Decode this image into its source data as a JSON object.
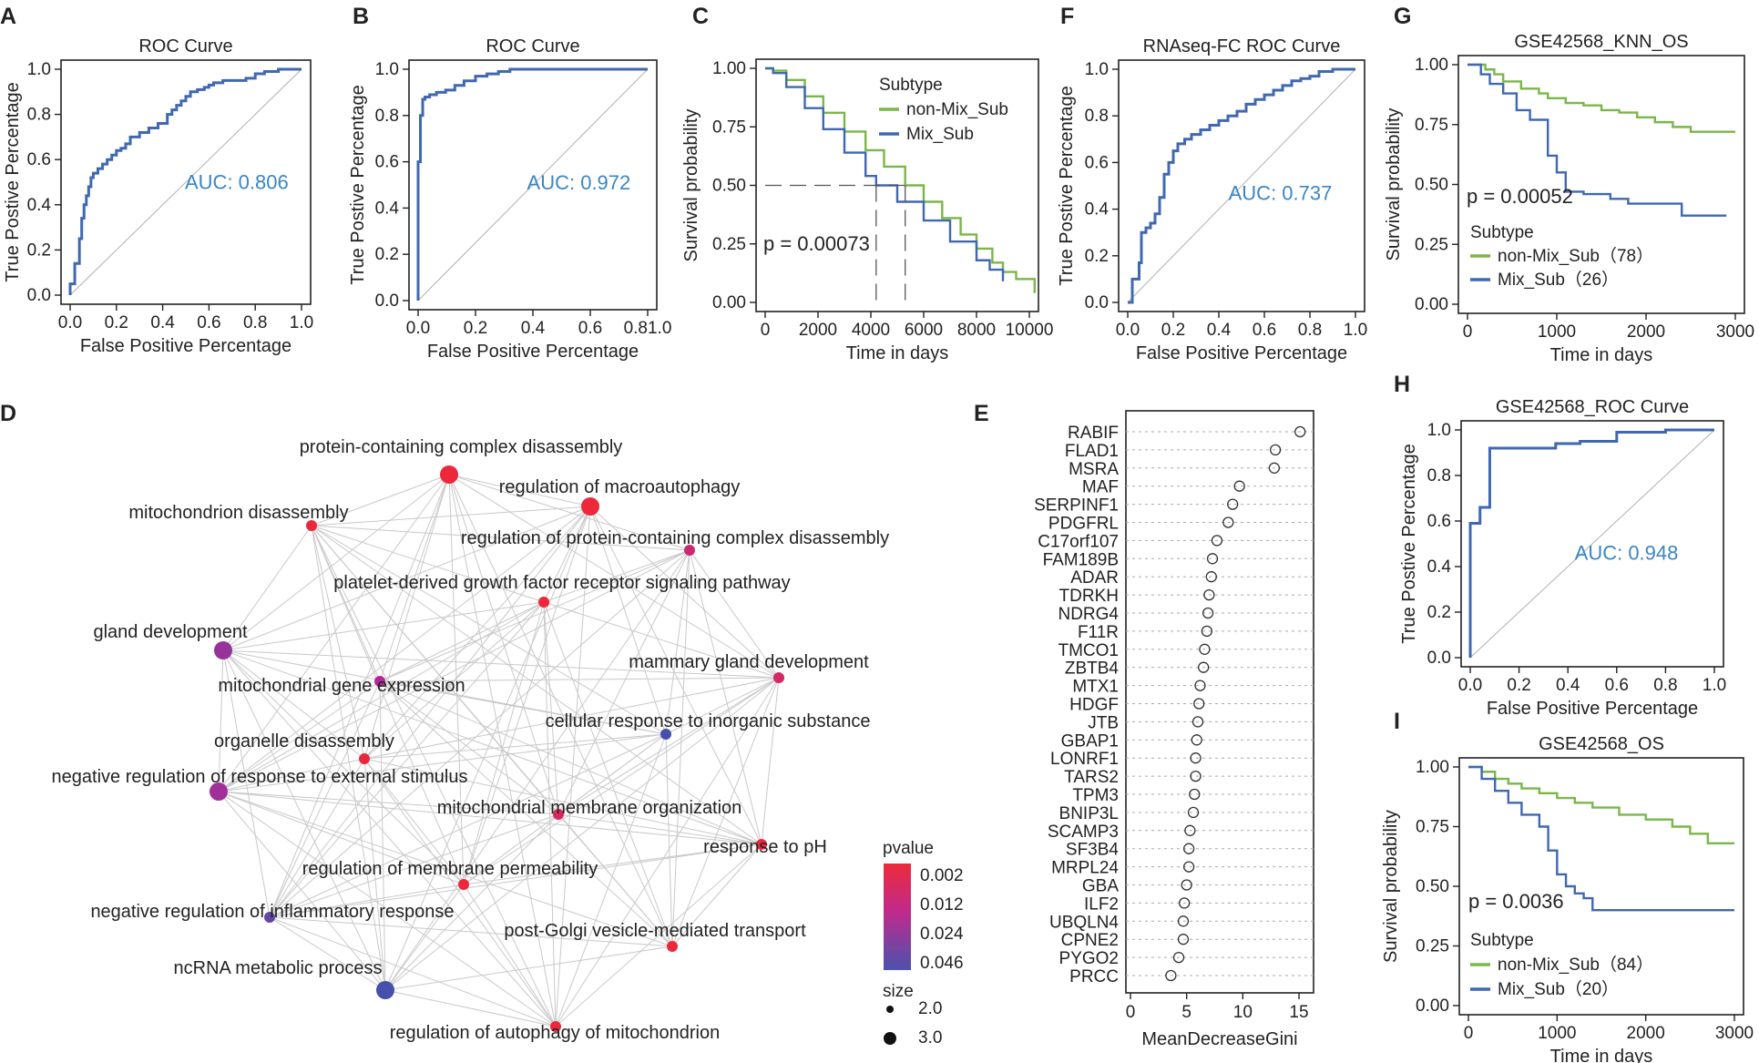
{
  "colors": {
    "green": "#7ab648",
    "blue": "#3f68b1",
    "auc": "#3a86c6",
    "axis": "#222222",
    "diag": "#b0b0b0",
    "edge": "#c9c9c9"
  },
  "chart_data": [
    {
      "panel": "A",
      "type": "line",
      "title": "ROC Curve",
      "xlabel": "False Positive Percentage",
      "ylabel": "True Postive Percentage",
      "xlim": [
        0,
        1
      ],
      "ylim": [
        0,
        1
      ],
      "xticks": [
        "0.0",
        "0.2",
        "0.4",
        "0.6",
        "0.8",
        "1.0"
      ],
      "yticks": [
        "0.0",
        "0.2",
        "0.4",
        "0.6",
        "0.8",
        "1.0"
      ],
      "annotation": "AUC: 0.806",
      "series": [
        {
          "name": "ROC",
          "x": [
            0,
            0,
            0.02,
            0.02,
            0.04,
            0.05,
            0.06,
            0.07,
            0.08,
            0.09,
            0.1,
            0.12,
            0.14,
            0.16,
            0.18,
            0.2,
            0.22,
            0.24,
            0.26,
            0.3,
            0.34,
            0.38,
            0.42,
            0.44,
            0.46,
            0.48,
            0.5,
            0.52,
            0.55,
            0.58,
            0.6,
            0.62,
            0.66,
            0.7,
            0.76,
            0.8,
            0.84,
            0.9,
            1.0
          ],
          "y": [
            0,
            0.05,
            0.08,
            0.14,
            0.25,
            0.34,
            0.4,
            0.44,
            0.48,
            0.52,
            0.54,
            0.56,
            0.58,
            0.6,
            0.62,
            0.64,
            0.65,
            0.67,
            0.7,
            0.72,
            0.74,
            0.76,
            0.8,
            0.82,
            0.84,
            0.86,
            0.88,
            0.9,
            0.91,
            0.92,
            0.93,
            0.94,
            0.95,
            0.95,
            0.96,
            0.98,
            0.99,
            1.0,
            1.0
          ]
        }
      ]
    },
    {
      "panel": "B",
      "type": "line",
      "title": "ROC Curve",
      "xlabel": "False Positive Percentage",
      "ylabel": "True Postive Percentage",
      "xlim": [
        0,
        1
      ],
      "ylim": [
        0,
        1
      ],
      "xticks": [
        "0.0",
        "0.2",
        "0.4",
        "0.6",
        "0.81.0"
      ],
      "yticks": [
        "0.0",
        "0.2",
        "0.4",
        "0.6",
        "0.8",
        "1.0"
      ],
      "annotation": "AUC: 0.972",
      "series": [
        {
          "name": "ROC",
          "x": [
            0,
            0,
            0.01,
            0.01,
            0.02,
            0.02,
            0.03,
            0.05,
            0.08,
            0.12,
            0.16,
            0.2,
            0.25,
            0.3,
            0.35,
            0.4,
            0.5,
            0.7,
            1.0
          ],
          "y": [
            0,
            0.6,
            0.72,
            0.8,
            0.85,
            0.87,
            0.88,
            0.89,
            0.9,
            0.91,
            0.93,
            0.95,
            0.97,
            0.98,
            0.99,
            1.0,
            1.0,
            1.0,
            1.0
          ]
        }
      ]
    },
    {
      "panel": "C",
      "type": "line",
      "title": "",
      "xlabel": "Time in days",
      "ylabel": "Survival probability",
      "xlim": [
        0,
        10000
      ],
      "ylim": [
        0,
        1
      ],
      "xticks": [
        "0",
        "2000",
        "4000",
        "6000",
        "8000",
        "10000"
      ],
      "yticks": [
        "0.00",
        "0.25",
        "0.50",
        "0.75",
        "1.00"
      ],
      "legend_title": "Subtype",
      "annotation": "p = 0.00073",
      "median_survival": [
        4200,
        5300
      ],
      "series": [
        {
          "name": "non-Mix_Sub",
          "x": [
            0,
            300,
            800,
            1500,
            2200,
            3000,
            3800,
            4500,
            5300,
            6000,
            6700,
            7400,
            8000,
            8600,
            9000,
            9500,
            9800,
            10000,
            10200
          ],
          "y": [
            1,
            0.99,
            0.95,
            0.88,
            0.81,
            0.73,
            0.65,
            0.58,
            0.5,
            0.43,
            0.36,
            0.29,
            0.23,
            0.17,
            0.13,
            0.1,
            0.1,
            0.1,
            0.04
          ]
        },
        {
          "name": "Mix_Sub",
          "x": [
            0,
            300,
            800,
            1500,
            2200,
            3000,
            3800,
            4200,
            5000,
            6000,
            7000,
            8000,
            8500,
            9000
          ],
          "y": [
            1,
            0.98,
            0.92,
            0.83,
            0.74,
            0.64,
            0.54,
            0.5,
            0.43,
            0.35,
            0.26,
            0.18,
            0.14,
            0.09
          ]
        }
      ]
    },
    {
      "panel": "F",
      "type": "line",
      "title": "RNAseq-FC ROC Curve",
      "xlabel": "False Positive Percentage",
      "ylabel": "True Postive Percentage",
      "xlim": [
        0,
        1
      ],
      "ylim": [
        0,
        1
      ],
      "xticks": [
        "0.0",
        "0.2",
        "0.4",
        "0.6",
        "0.8",
        "1.0"
      ],
      "yticks": [
        "0.0",
        "0.2",
        "0.4",
        "0.6",
        "0.8",
        "1.0"
      ],
      "annotation": "AUC: 0.737",
      "series": [
        {
          "name": "ROC",
          "x": [
            0,
            0.02,
            0.02,
            0.05,
            0.06,
            0.08,
            0.1,
            0.12,
            0.14,
            0.16,
            0.18,
            0.2,
            0.22,
            0.25,
            0.28,
            0.32,
            0.36,
            0.4,
            0.44,
            0.48,
            0.52,
            0.56,
            0.6,
            0.64,
            0.68,
            0.72,
            0.76,
            0.8,
            0.84,
            0.9,
            1.0
          ],
          "y": [
            0,
            0.05,
            0.1,
            0.17,
            0.3,
            0.32,
            0.34,
            0.38,
            0.45,
            0.55,
            0.6,
            0.65,
            0.68,
            0.7,
            0.72,
            0.74,
            0.76,
            0.78,
            0.8,
            0.82,
            0.85,
            0.87,
            0.89,
            0.91,
            0.93,
            0.95,
            0.96,
            0.97,
            0.99,
            1.0,
            1.0
          ]
        }
      ]
    },
    {
      "panel": "G",
      "type": "line",
      "title": "GSE42568_KNN_OS",
      "xlabel": "Time in days",
      "ylabel": "Survival probability",
      "xlim": [
        0,
        3000
      ],
      "ylim": [
        0,
        1
      ],
      "xticks": [
        "0",
        "1000",
        "2000",
        "3000"
      ],
      "yticks": [
        "0.00",
        "0.25",
        "0.50",
        "0.75",
        "1.00"
      ],
      "legend_title": "Subtype",
      "annotation": "p = 0.00052",
      "series": [
        {
          "name": "non-Mix_Sub",
          "count": "78",
          "x": [
            0,
            200,
            300,
            400,
            600,
            800,
            900,
            1100,
            1300,
            1500,
            1700,
            1900,
            2100,
            2300,
            2500,
            3000
          ],
          "y": [
            1,
            0.98,
            0.96,
            0.93,
            0.9,
            0.88,
            0.86,
            0.84,
            0.83,
            0.81,
            0.8,
            0.78,
            0.76,
            0.74,
            0.72,
            0.72
          ]
        },
        {
          "name": "Mix_Sub",
          "count": "26",
          "x": [
            0,
            150,
            250,
            400,
            550,
            700,
            900,
            1000,
            1100,
            1300,
            1600,
            1800,
            2400,
            2900
          ],
          "y": [
            1,
            0.96,
            0.92,
            0.88,
            0.81,
            0.77,
            0.62,
            0.55,
            0.47,
            0.46,
            0.44,
            0.42,
            0.37,
            0.37
          ]
        }
      ]
    },
    {
      "panel": "H",
      "type": "line",
      "title": "GSE42568_ROC Curve",
      "xlabel": "False Positive Percentage",
      "ylabel": "True Postive Percentage",
      "xlim": [
        0,
        1
      ],
      "ylim": [
        0,
        1
      ],
      "xticks": [
        "0.0",
        "0.2",
        "0.4",
        "0.6",
        "0.8",
        "1.0"
      ],
      "yticks": [
        "0.0",
        "0.2",
        "0.4",
        "0.6",
        "0.8",
        "1.0"
      ],
      "annotation": "AUC: 0.948",
      "series": [
        {
          "name": "ROC",
          "x": [
            0,
            0,
            0.04,
            0.04,
            0.08,
            0.08,
            0.3,
            0.35,
            0.45,
            0.6,
            0.6,
            0.8,
            1.0
          ],
          "y": [
            0,
            0.59,
            0.59,
            0.66,
            0.66,
            0.92,
            0.92,
            0.94,
            0.95,
            0.96,
            0.99,
            1.0,
            1.0
          ]
        }
      ]
    },
    {
      "panel": "I",
      "type": "line",
      "title": "GSE42568_OS",
      "xlabel": "Time in days",
      "ylabel": "Survival probability",
      "xlim": [
        0,
        3000
      ],
      "ylim": [
        0,
        1
      ],
      "xticks": [
        "0",
        "1000",
        "2000",
        "3000"
      ],
      "yticks": [
        "0.00",
        "0.25",
        "0.50",
        "0.75",
        "1.00"
      ],
      "legend_title": "Subtype",
      "annotation": "p = 0.0036",
      "series": [
        {
          "name": "non-Mix_Sub",
          "count": "84",
          "x": [
            0,
            150,
            300,
            450,
            600,
            800,
            1000,
            1200,
            1400,
            1700,
            2000,
            2300,
            2500,
            2700,
            3000
          ],
          "y": [
            1,
            0.98,
            0.95,
            0.93,
            0.91,
            0.89,
            0.87,
            0.85,
            0.83,
            0.8,
            0.78,
            0.75,
            0.72,
            0.68,
            0.68
          ]
        },
        {
          "name": "Mix_Sub",
          "count": "20",
          "x": [
            0,
            150,
            300,
            450,
            600,
            800,
            900,
            1000,
            1100,
            1200,
            1300,
            1400,
            1700,
            3000
          ],
          "y": [
            1,
            0.95,
            0.9,
            0.85,
            0.8,
            0.75,
            0.65,
            0.55,
            0.5,
            0.47,
            0.45,
            0.4,
            0.4,
            0.4
          ]
        }
      ]
    },
    {
      "panel": "E",
      "type": "scatter",
      "title": "",
      "xlabel": "MeanDecreaseGini",
      "ylabel": "",
      "xlim": [
        0,
        15
      ],
      "xticks": [
        "0",
        "5",
        "10",
        "15"
      ],
      "categories": [
        "RABIF",
        "FLAD1",
        "MSRA",
        "MAF",
        "SERPINF1",
        "PDGFRL",
        "C17orf107",
        "FAM189B",
        "ADAR",
        "TDRKH",
        "NDRG4",
        "F11R",
        "TMCO1",
        "ZBTB4",
        "MTX1",
        "HDGF",
        "JTB",
        "GBAP1",
        "LONRF1",
        "TARS2",
        "TPM3",
        "BNIP3L",
        "SCAMP3",
        "SF3B4",
        "MRPL24",
        "GBA",
        "ILF2",
        "UBQLN4",
        "CPNE2",
        "PYGO2",
        "PRCC"
      ],
      "values": [
        15.1,
        12.9,
        12.8,
        9.7,
        9.1,
        8.7,
        7.7,
        7.3,
        7.2,
        7.0,
        6.9,
        6.8,
        6.6,
        6.5,
        6.2,
        6.1,
        6.0,
        5.9,
        5.8,
        5.8,
        5.7,
        5.6,
        5.3,
        5.2,
        5.2,
        5.0,
        4.8,
        4.7,
        4.7,
        4.3,
        3.6
      ]
    },
    {
      "panel": "D",
      "type": "network",
      "title": "",
      "legend_color_title": "pvalue",
      "legend_color_ticks": [
        "0.002",
        "0.012",
        "0.024",
        "0.046"
      ],
      "legend_size_title": "size",
      "legend_size_ticks": [
        "2.0",
        "3.0"
      ],
      "nodes": [
        {
          "label": "protein-containing complex disassembly",
          "pvalue": 0.002,
          "size": 3.0
        },
        {
          "label": "regulation of macroautophagy",
          "pvalue": 0.002,
          "size": 3.0
        },
        {
          "label": "mitochondrion disassembly",
          "pvalue": 0.003,
          "size": 2.0
        },
        {
          "label": "regulation of protein-containing complex disassembly",
          "pvalue": 0.015,
          "size": 2.0
        },
        {
          "label": "platelet-derived growth factor receptor signaling pathway",
          "pvalue": 0.002,
          "size": 2.0
        },
        {
          "label": "gland development",
          "pvalue": 0.03,
          "size": 3.0
        },
        {
          "label": "mammary gland development",
          "pvalue": 0.012,
          "size": 2.0
        },
        {
          "label": "mitochondrial gene expression",
          "pvalue": 0.024,
          "size": 2.0
        },
        {
          "label": "cellular response to inorganic substance",
          "pvalue": 0.046,
          "size": 2.0
        },
        {
          "label": "organelle disassembly",
          "pvalue": 0.003,
          "size": 2.0
        },
        {
          "label": "negative regulation of response to external stimulus",
          "pvalue": 0.028,
          "size": 3.0
        },
        {
          "label": "mitochondrial membrane organization",
          "pvalue": 0.01,
          "size": 2.0
        },
        {
          "label": "response to pH",
          "pvalue": 0.002,
          "size": 2.0
        },
        {
          "label": "regulation of membrane permeability",
          "pvalue": 0.002,
          "size": 2.0
        },
        {
          "label": "negative regulation of inflammatory response",
          "pvalue": 0.04,
          "size": 2.0
        },
        {
          "label": "post-Golgi vesicle-mediated transport",
          "pvalue": 0.002,
          "size": 2.0
        },
        {
          "label": "ncRNA metabolic process",
          "pvalue": 0.046,
          "size": 3.0
        },
        {
          "label": "regulation of autophagy of mitochondrion",
          "pvalue": 0.002,
          "size": 2.0
        }
      ]
    }
  ],
  "panel_labels": [
    "A",
    "B",
    "C",
    "D",
    "E",
    "F",
    "G",
    "H",
    "I"
  ]
}
